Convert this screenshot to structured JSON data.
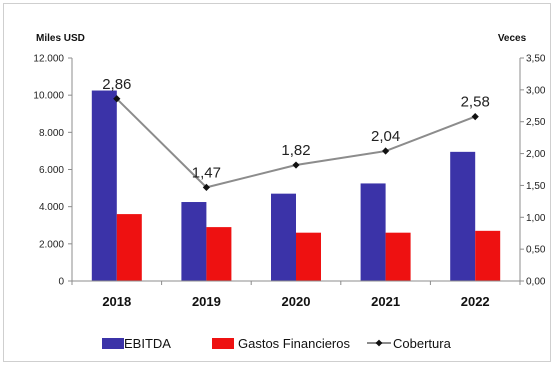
{
  "chart_data": {
    "type": "bar",
    "left_axis_unit": "Miles USD",
    "right_axis_unit": "Veces",
    "categories": [
      "2018",
      "2019",
      "2020",
      "2021",
      "2022"
    ],
    "left_ylim": [
      0,
      12000
    ],
    "left_ticks": [
      0,
      2000,
      4000,
      6000,
      8000,
      10000,
      12000
    ],
    "left_tick_labels": [
      "0",
      "2.000",
      "4.000",
      "6.000",
      "8.000",
      "10.000",
      "12.000"
    ],
    "right_ylim": [
      0,
      3.5
    ],
    "right_ticks": [
      0,
      0.5,
      1,
      1.5,
      2,
      2.5,
      3,
      3.5
    ],
    "right_tick_labels": [
      "0,00",
      "0,50",
      "1,00",
      "1,50",
      "2,00",
      "2,50",
      "3,00",
      "3,50"
    ],
    "series": [
      {
        "name": "EBITDA",
        "type": "bar",
        "axis": "left",
        "color": "#3b33a8",
        "values": [
          10250,
          4250,
          4700,
          5250,
          6950
        ]
      },
      {
        "name": "Gastos Financieros",
        "type": "bar",
        "axis": "left",
        "color": "#ee1111",
        "values": [
          3600,
          2900,
          2600,
          2600,
          2700
        ]
      },
      {
        "name": "Cobertura",
        "type": "line",
        "axis": "right",
        "color": "#8c8c8c",
        "marker_color": "#111111",
        "values": [
          2.86,
          1.47,
          1.82,
          2.04,
          2.58
        ],
        "data_labels": [
          "2,86",
          "1,47",
          "1,82",
          "2,04",
          "2,58"
        ]
      }
    ],
    "grid": false,
    "legend_position": "bottom"
  }
}
